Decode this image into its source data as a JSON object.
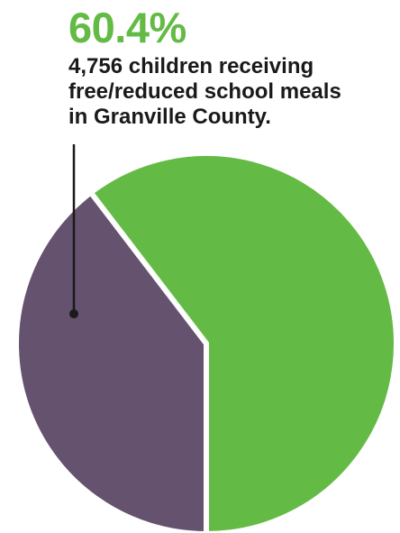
{
  "annotation": {
    "value_text": "60.4%",
    "description_lines": [
      "4,756 children receiving",
      "free/reduced school meals",
      "in Granville County."
    ]
  },
  "colors": {
    "highlight": "#63bb45",
    "remainder": "#64526e",
    "text": "#1a1a1a"
  },
  "chart_data": {
    "type": "pie",
    "slices": [
      {
        "value": 60.4,
        "color": "#63bb45"
      },
      {
        "value": 39.6,
        "color": "#64526e"
      }
    ],
    "annotations": [
      "60.4%",
      "4,756 children receiving free/reduced school meals in Granville County."
    ]
  }
}
